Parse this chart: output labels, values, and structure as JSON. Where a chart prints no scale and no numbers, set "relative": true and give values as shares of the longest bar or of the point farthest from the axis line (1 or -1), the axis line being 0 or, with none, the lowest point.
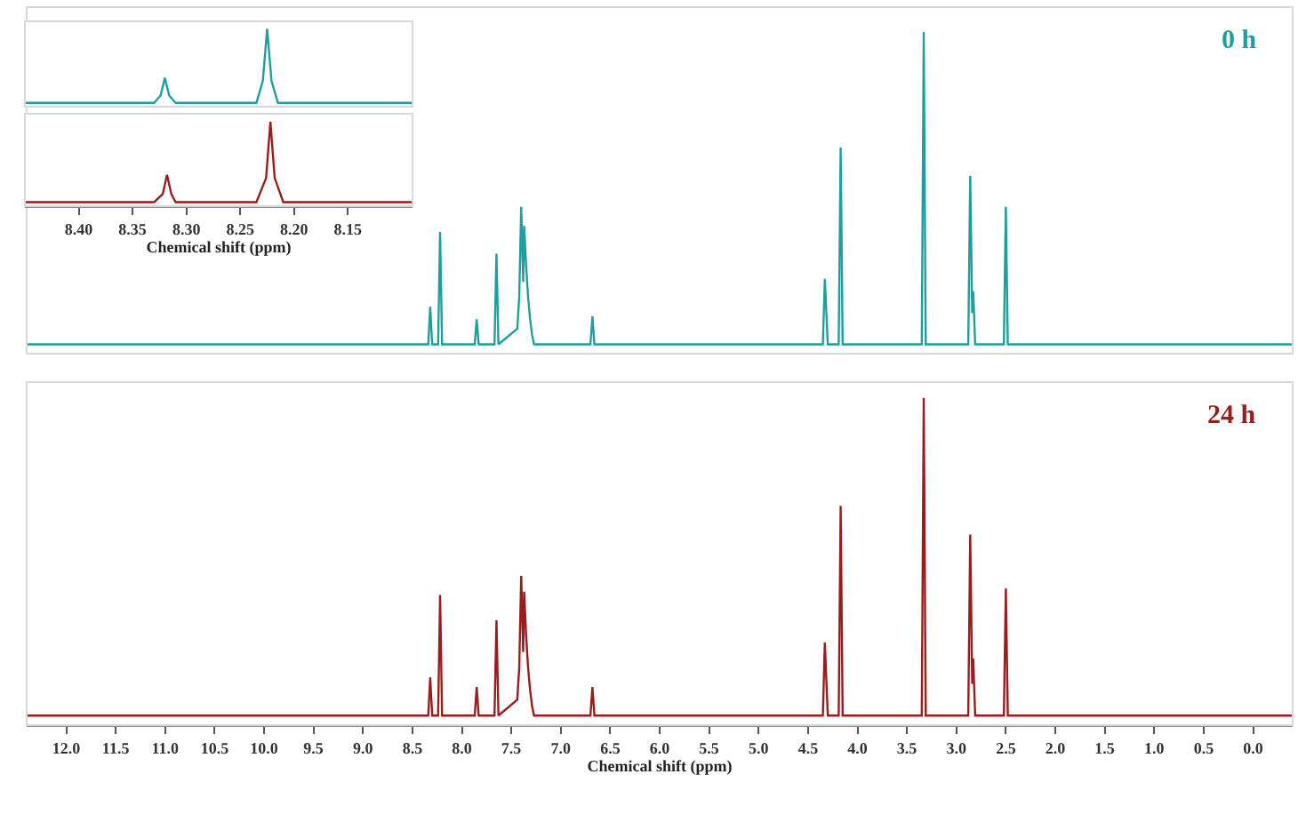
{
  "chart_data": [
    {
      "type": "line",
      "relative": true,
      "tick_labels": false,
      "xlim": [
        12.4,
        -0.4
      ],
      "x": [
        12.4,
        8.34,
        8.32,
        8.3,
        8.24,
        8.22,
        8.2,
        7.87,
        7.85,
        7.83,
        7.67,
        7.65,
        7.63,
        7.44,
        7.42,
        7.4,
        7.38,
        7.37,
        7.35,
        7.33,
        7.31,
        7.29,
        7.27,
        6.7,
        6.68,
        6.66,
        4.35,
        4.33,
        4.3,
        4.19,
        4.17,
        4.15,
        3.35,
        3.33,
        3.31,
        2.88,
        2.86,
        2.84,
        2.83,
        2.81,
        2.52,
        2.5,
        2.48,
        -0.4
      ],
      "series": [
        {
          "name": "0 h",
          "color": "#1f9e9e",
          "values": [
            0,
            0,
            0.12,
            0,
            0,
            0.36,
            0,
            0,
            0.08,
            0,
            0,
            0.29,
            0,
            0.05,
            0.15,
            0.44,
            0.2,
            0.38,
            0.25,
            0.15,
            0.08,
            0.03,
            0,
            0,
            0.09,
            0,
            0,
            0.21,
            0,
            0,
            0.63,
            0,
            0,
            1,
            0,
            0,
            0.54,
            0.1,
            0.17,
            0,
            0,
            0.44,
            0,
            0
          ]
        }
      ]
    },
    {
      "type": "line",
      "relative": true,
      "tick_labels": "x",
      "xlim": [
        12.4,
        -0.4
      ],
      "xlabel": "Chemical shift (ppm)",
      "xticks": [
        {
          "value": 12,
          "label": "12.0"
        },
        11.5,
        {
          "value": 11,
          "label": "11.0"
        },
        10.5,
        {
          "value": 10,
          "label": "10.0"
        },
        9.5,
        {
          "value": 9,
          "label": "9.0"
        },
        8.5,
        {
          "value": 8,
          "label": "8.0"
        },
        7.5,
        {
          "value": 7,
          "label": "7.0"
        },
        6.5,
        {
          "value": 6,
          "label": "6.0"
        },
        5.5,
        {
          "value": 5,
          "label": "5.0"
        },
        4.5,
        {
          "value": 4,
          "label": "4.0"
        },
        3.5,
        {
          "value": 3,
          "label": "3.0"
        },
        2.5,
        {
          "value": 2,
          "label": "2.0"
        },
        1.5,
        {
          "value": 1,
          "label": "1.0"
        },
        0.5,
        {
          "value": 0,
          "label": "0.0"
        }
      ],
      "x": [
        12.4,
        8.34,
        8.32,
        8.3,
        8.24,
        8.22,
        8.2,
        7.87,
        7.85,
        7.83,
        7.67,
        7.65,
        7.63,
        7.44,
        7.42,
        7.4,
        7.38,
        7.37,
        7.35,
        7.33,
        7.31,
        7.29,
        7.27,
        6.7,
        6.68,
        6.66,
        4.35,
        4.33,
        4.3,
        4.19,
        4.17,
        4.15,
        3.35,
        3.33,
        3.31,
        2.88,
        2.86,
        2.84,
        2.83,
        2.81,
        2.52,
        2.5,
        2.48,
        -0.4
      ],
      "series": [
        {
          "name": "24 h",
          "color": "#9b1c1c",
          "values": [
            0,
            0,
            0.12,
            0,
            0,
            0.38,
            0,
            0,
            0.09,
            0,
            0,
            0.3,
            0,
            0.05,
            0.15,
            0.44,
            0.2,
            0.39,
            0.25,
            0.15,
            0.08,
            0.03,
            0,
            0,
            0.09,
            0,
            0,
            0.23,
            0,
            0,
            0.66,
            0,
            0,
            1,
            0,
            0,
            0.57,
            0.1,
            0.18,
            0,
            0,
            0.4,
            0,
            0
          ]
        }
      ]
    },
    {
      "type": "line",
      "relative": true,
      "tick_labels": false,
      "xlim": [
        8.45,
        8.09
      ],
      "x": [
        8.45,
        8.33,
        8.324,
        8.32,
        8.316,
        8.31,
        8.235,
        8.229,
        8.225,
        8.221,
        8.215,
        8.09
      ],
      "series": [
        {
          "color": "#1f9e9e",
          "values": [
            0,
            0,
            0.1,
            0.34,
            0.1,
            0,
            0,
            0.3,
            1,
            0.3,
            0,
            0
          ]
        }
      ]
    },
    {
      "type": "line",
      "relative": true,
      "tick_labels": "x",
      "xlim": [
        8.45,
        8.09
      ],
      "xlabel": "Chemical shift (ppm)",
      "xticks": [
        {
          "value": 8.4,
          "label": "8.40"
        },
        8.35,
        {
          "value": 8.3,
          "label": "8.30"
        },
        8.25,
        {
          "value": 8.2,
          "label": "8.20"
        },
        8.15
      ],
      "x": [
        8.45,
        8.33,
        8.322,
        8.318,
        8.314,
        8.31,
        8.235,
        8.226,
        8.222,
        8.218,
        8.21,
        8.09
      ],
      "series": [
        {
          "color": "#9b1c1c",
          "values": [
            0,
            0,
            0.1,
            0.34,
            0.1,
            0,
            0,
            0.3,
            1,
            0.3,
            0,
            0
          ]
        }
      ]
    }
  ]
}
